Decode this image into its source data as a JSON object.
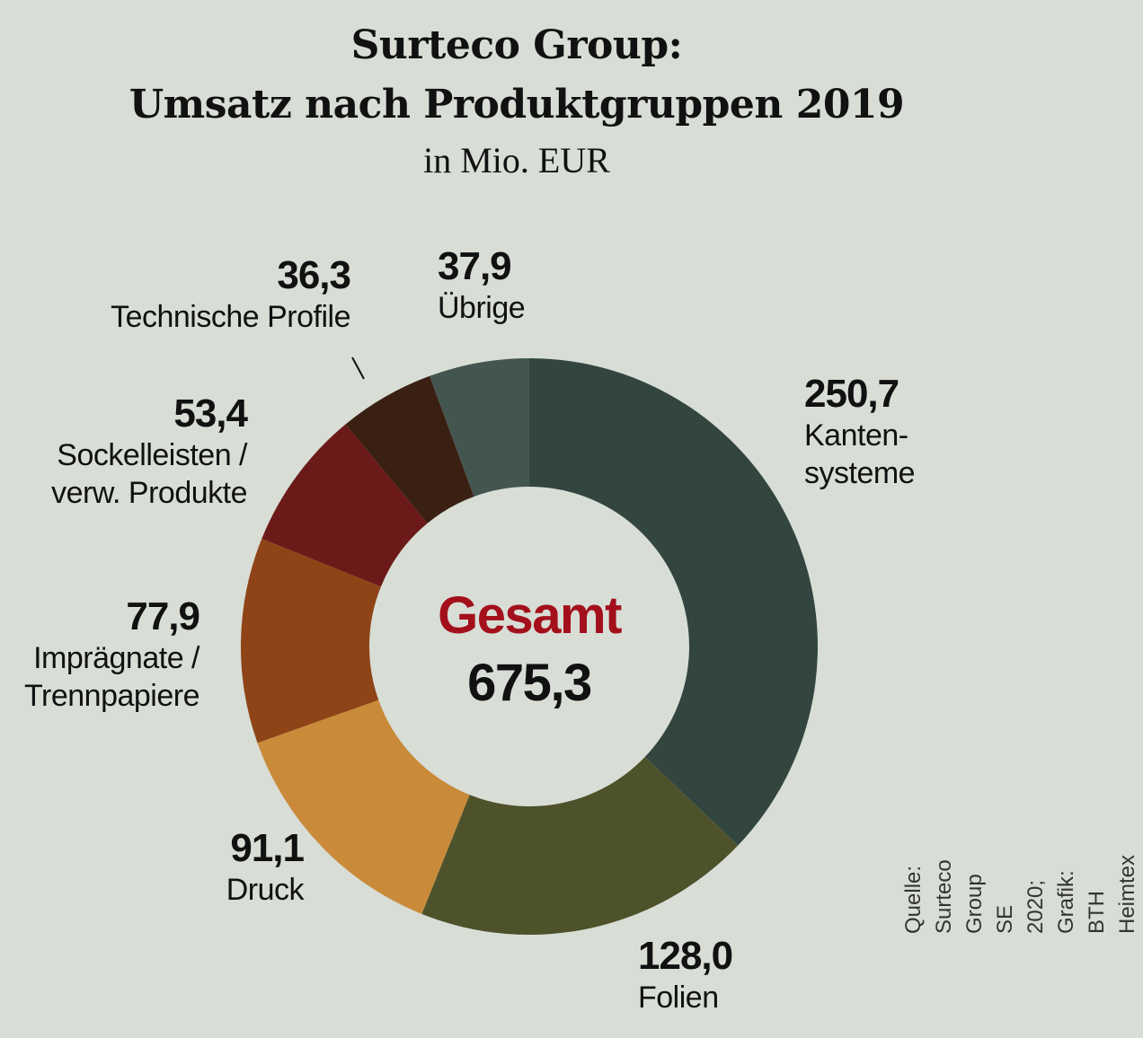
{
  "chart_data": {
    "type": "donut",
    "title": "Surteco Group:\nUmsatz nach Produktgruppen 2019",
    "subtitle": "in Mio. EUR",
    "categories": [
      "Kanten-\nsysteme",
      "Folien",
      "Druck",
      "Imprägnate /\nTrennpapiere",
      "Sockelleisten /\nverw. Produkte",
      "Technische Profile",
      "Übrige"
    ],
    "values": [
      250.7,
      128.0,
      91.1,
      77.9,
      53.4,
      36.3,
      37.9
    ],
    "value_labels": [
      "250,7",
      "128,0",
      "91,1",
      "77,9",
      "53,4",
      "36,3",
      "37,9"
    ],
    "colors": [
      "#32453f",
      "#4d522a",
      "#c98a3a",
      "#8e4416",
      "#6b1a19",
      "#3a2012",
      "#43554f"
    ],
    "center_title": "Gesamt",
    "center_value": {
      "value": 675.3,
      "label": "675,3"
    },
    "source": "Quelle: Surteco Group SE 2020;\nGrafik: BTH Heimtex"
  }
}
